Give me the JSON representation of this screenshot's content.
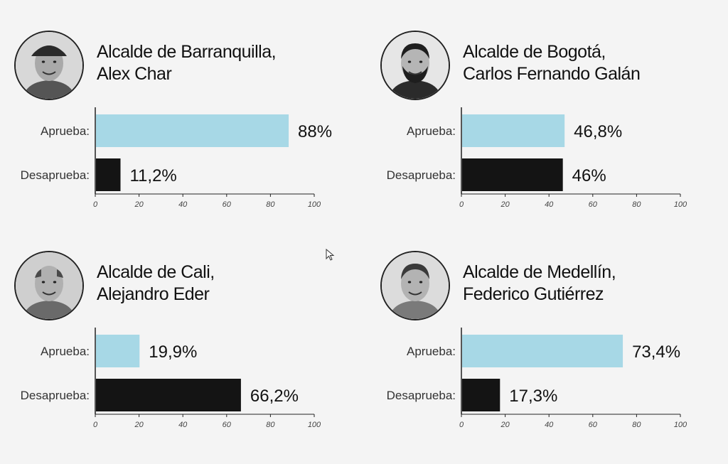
{
  "colors": {
    "aprueba": "#a7d8e6",
    "desaprueba": "#141414",
    "axis": "#222222",
    "text": "#111111"
  },
  "chart_data": [
    {
      "type": "bar",
      "orientation": "horizontal",
      "title_lines": [
        "Alcalde de Barranquilla,",
        "Alex Char"
      ],
      "categories": [
        "Aprueba:",
        "Desaprueba:"
      ],
      "values": [
        88,
        11.2
      ],
      "value_labels": [
        "88%",
        "11,2%"
      ],
      "xlim": [
        0,
        100
      ],
      "xticks": [
        "0",
        "20",
        "40",
        "60",
        "80",
        "100"
      ],
      "avatar": "portrait-barranquilla-mayor"
    },
    {
      "type": "bar",
      "orientation": "horizontal",
      "title_lines": [
        "Alcalde de Bogotá,",
        "Carlos Fernando Galán"
      ],
      "categories": [
        "Aprueba:",
        "Desaprueba:"
      ],
      "values": [
        46.8,
        46
      ],
      "value_labels": [
        "46,8%",
        "46%"
      ],
      "xlim": [
        0,
        100
      ],
      "xticks": [
        "0",
        "20",
        "40",
        "60",
        "80",
        "100"
      ],
      "avatar": "portrait-bogota-mayor"
    },
    {
      "type": "bar",
      "orientation": "horizontal",
      "title_lines": [
        "Alcalde de Cali,",
        "Alejandro Eder"
      ],
      "categories": [
        "Aprueba:",
        "Desaprueba:"
      ],
      "values": [
        19.9,
        66.2
      ],
      "value_labels": [
        "19,9%",
        "66,2%"
      ],
      "xlim": [
        0,
        100
      ],
      "xticks": [
        "0",
        "20",
        "40",
        "60",
        "80",
        "100"
      ],
      "avatar": "portrait-cali-mayor"
    },
    {
      "type": "bar",
      "orientation": "horizontal",
      "title_lines": [
        "Alcalde de Medellín,",
        "Federico Gutiérrez"
      ],
      "categories": [
        "Aprueba:",
        "Desaprueba:"
      ],
      "values": [
        73.4,
        17.3
      ],
      "value_labels": [
        "73,4%",
        "17,3%"
      ],
      "xlim": [
        0,
        100
      ],
      "xticks": [
        "0",
        "20",
        "40",
        "60",
        "80",
        "100"
      ],
      "avatar": "portrait-medellin-mayor"
    }
  ]
}
